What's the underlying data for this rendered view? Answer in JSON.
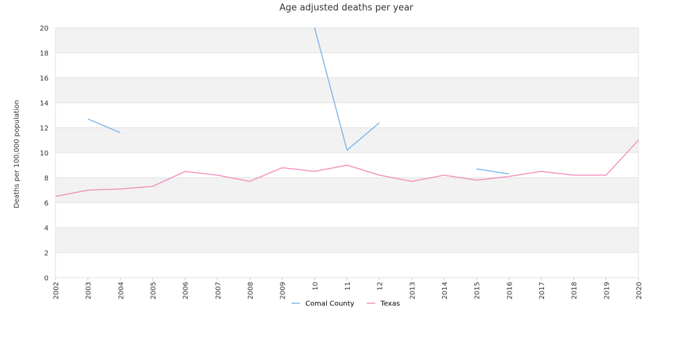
{
  "chart_data": {
    "type": "line",
    "title": "Age adjusted deaths per year",
    "xlabel": "",
    "ylabel": "Deaths per 100,000 population",
    "ylim": [
      0,
      20
    ],
    "yticks": [
      "0",
      "2",
      "4",
      "6",
      "8",
      "10",
      "12",
      "14",
      "16",
      "18",
      "20"
    ],
    "categories": [
      "2002",
      "2003",
      "2004",
      "2005",
      "2006",
      "2007",
      "2008",
      "2009",
      "10",
      "11",
      "12",
      "2013",
      "2014",
      "2015",
      "2016",
      "2017",
      "2018",
      "2019",
      "2020"
    ],
    "grid": true,
    "legend_position": "bottom",
    "series": [
      {
        "name": "Comal County",
        "color": "#7cb5ec",
        "values": [
          null,
          12.7,
          11.6,
          null,
          null,
          null,
          null,
          null,
          20.0,
          10.2,
          12.4,
          null,
          null,
          8.7,
          8.3,
          null,
          null,
          null,
          null
        ]
      },
      {
        "name": "Texas",
        "color": "#f48fbe",
        "values": [
          6.5,
          7.0,
          7.1,
          7.3,
          8.5,
          8.2,
          7.7,
          8.8,
          8.5,
          9.0,
          8.2,
          7.7,
          8.2,
          7.8,
          8.1,
          8.5,
          8.2,
          8.2,
          11.0
        ]
      }
    ]
  }
}
